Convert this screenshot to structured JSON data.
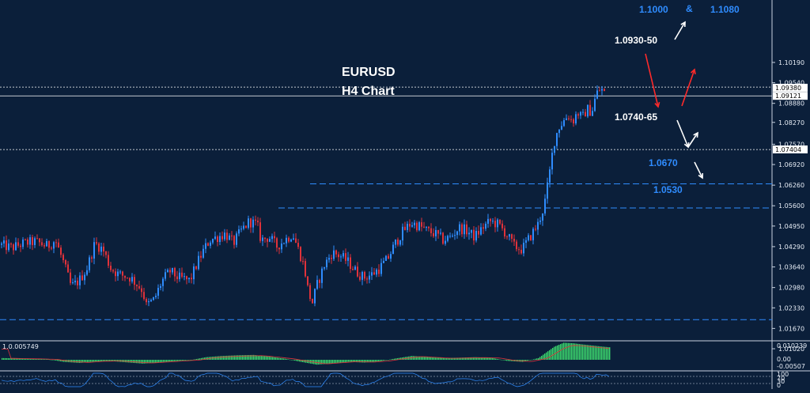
{
  "chart_data": {
    "type": "candlestick",
    "symbol": "EURUSD",
    "timeframe": "H4 Chart",
    "ylim": [
      1.0135,
      1.1219
    ],
    "y_ticks": [
      "1.10190",
      "1.09540",
      "1.08880",
      "1.08270",
      "1.07570",
      "1.06920",
      "1.06260",
      "1.05600",
      "1.04950",
      "1.04290",
      "1.03640",
      "1.02980",
      "1.02330",
      "1.01670",
      "1.01020"
    ],
    "y_tick_values": [
      1.1019,
      1.0954,
      1.0888,
      1.0827,
      1.0757,
      1.0692,
      1.0626,
      1.056,
      1.0495,
      1.0429,
      1.0364,
      1.0298,
      1.0233,
      1.0167,
      1.0102
    ],
    "price_tags": [
      {
        "label": "1.09380",
        "value": 1.0938
      },
      {
        "label": "1.09121",
        "value": 1.09121
      },
      {
        "label": "1.07404",
        "value": 1.07404
      }
    ],
    "price_path": [
      [
        0,
        1.0435
      ],
      [
        15,
        1.0425
      ],
      [
        30,
        1.044
      ],
      [
        45,
        1.0445
      ],
      [
        60,
        1.043
      ],
      [
        70,
        1.045
      ],
      [
        80,
        1.038
      ],
      [
        90,
        1.03
      ],
      [
        100,
        1.032
      ],
      [
        110,
        1.036
      ],
      [
        120,
        1.044
      ],
      [
        130,
        1.042
      ],
      [
        140,
        1.036
      ],
      [
        150,
        1.034
      ],
      [
        165,
        1.033
      ],
      [
        180,
        1.029
      ],
      [
        185,
        1.024
      ],
      [
        195,
        1.026
      ],
      [
        205,
        1.032
      ],
      [
        215,
        1.035
      ],
      [
        225,
        1.033
      ],
      [
        240,
        1.032
      ],
      [
        250,
        1.038
      ],
      [
        258,
        1.042
      ],
      [
        265,
        1.045
      ],
      [
        275,
        1.046
      ],
      [
        285,
        1.047
      ],
      [
        295,
        1.044
      ],
      [
        305,
        1.048
      ],
      [
        315,
        1.051
      ],
      [
        325,
        1.05
      ],
      [
        330,
        1.045
      ],
      [
        340,
        1.046
      ],
      [
        350,
        1.043
      ],
      [
        360,
        1.045
      ],
      [
        370,
        1.047
      ],
      [
        380,
        1.04
      ],
      [
        385,
        1.036
      ],
      [
        390,
        1.028
      ],
      [
        395,
        1.025
      ],
      [
        400,
        1.03
      ],
      [
        410,
        1.037
      ],
      [
        420,
        1.041
      ],
      [
        430,
        1.04
      ],
      [
        440,
        1.038
      ],
      [
        450,
        1.035
      ],
      [
        460,
        1.033
      ],
      [
        470,
        1.034
      ],
      [
        480,
        1.036
      ],
      [
        490,
        1.039
      ],
      [
        500,
        1.044
      ],
      [
        510,
        1.048
      ],
      [
        520,
        1.0505
      ],
      [
        530,
        1.0495
      ],
      [
        540,
        1.048
      ],
      [
        550,
        1.047
      ],
      [
        560,
        1.045
      ],
      [
        570,
        1.046
      ],
      [
        580,
        1.049
      ],
      [
        590,
        1.048
      ],
      [
        600,
        1.046
      ],
      [
        610,
        1.049
      ],
      [
        620,
        1.051
      ],
      [
        630,
        1.05
      ],
      [
        640,
        1.047
      ],
      [
        650,
        1.043
      ],
      [
        660,
        1.042
      ],
      [
        670,
        1.046
      ],
      [
        680,
        1.05
      ],
      [
        688,
        1.056
      ],
      [
        694,
        1.065
      ],
      [
        700,
        1.076
      ],
      [
        706,
        1.081
      ],
      [
        712,
        1.083
      ],
      [
        718,
        1.085
      ],
      [
        724,
        1.083
      ],
      [
        730,
        1.086
      ],
      [
        736,
        1.084
      ],
      [
        742,
        1.087
      ],
      [
        748,
        1.086
      ],
      [
        754,
        1.092
      ],
      [
        760,
        1.0935
      ],
      [
        766,
        1.0912
      ]
    ],
    "levels": [
      {
        "value": 1.094,
        "style": "dotted",
        "x_start": 0
      },
      {
        "value": 1.0912,
        "style": "solid",
        "x_start": 0
      },
      {
        "value": 1.074,
        "style": "dotted",
        "x_start": 0
      },
      {
        "value": 1.063,
        "style": "dashed",
        "x_start": 392
      },
      {
        "value": 1.0553,
        "style": "dashed",
        "x_start": 352
      },
      {
        "value": 1.0195,
        "style": "dashed",
        "x_start": 0
      }
    ],
    "annotations": {
      "res_label": "1.0930-50",
      "res_value": 1.0945,
      "sup_label": "1.0740-65",
      "sup_value": 1.0745,
      "target_1": "1.1000",
      "target_amp": "&",
      "target_2": "1.1080",
      "lvl_1": "1.0670",
      "lvl_2": "1.0530"
    },
    "macd": {
      "value_label": "1.0.005749",
      "scale_top": "0.010239",
      "scale_zero": "0.00",
      "scale_bottom": "-0.00507",
      "histogram": [
        [
          0,
          0.001
        ],
        [
          20,
          0.0008
        ],
        [
          40,
          0.0006
        ],
        [
          60,
          0.0003
        ],
        [
          80,
          -0.0012
        ],
        [
          100,
          -0.0018
        ],
        [
          120,
          -0.001
        ],
        [
          140,
          -0.0008
        ],
        [
          160,
          -0.0015
        ],
        [
          180,
          -0.0022
        ],
        [
          200,
          -0.0015
        ],
        [
          220,
          -0.0008
        ],
        [
          240,
          -0.0002
        ],
        [
          260,
          0.0015
        ],
        [
          280,
          0.0022
        ],
        [
          300,
          0.0026
        ],
        [
          320,
          0.0028
        ],
        [
          340,
          0.0018
        ],
        [
          360,
          0.0006
        ],
        [
          380,
          -0.0012
        ],
        [
          400,
          -0.0028
        ],
        [
          420,
          -0.002
        ],
        [
          440,
          -0.0012
        ],
        [
          460,
          -0.0016
        ],
        [
          480,
          -0.0008
        ],
        [
          500,
          0.0008
        ],
        [
          520,
          0.0022
        ],
        [
          540,
          0.0016
        ],
        [
          560,
          0.001
        ],
        [
          580,
          0.0012
        ],
        [
          600,
          0.0015
        ],
        [
          620,
          0.0012
        ],
        [
          640,
          -0.0006
        ],
        [
          660,
          -0.0012
        ],
        [
          680,
          0.001
        ],
        [
          700,
          0.0075
        ],
        [
          712,
          0.0098
        ],
        [
          724,
          0.0095
        ],
        [
          736,
          0.0088
        ],
        [
          748,
          0.0082
        ],
        [
          760,
          0.0076
        ],
        [
          770,
          0.0072
        ]
      ]
    },
    "rsi": {
      "scale_top": "100",
      "scale_mid1": "70",
      "scale_mid2": "30",
      "scale_bottom": "0"
    },
    "colors": {
      "background": "#0b1f3a",
      "bull": "#2f8cff",
      "bear": "#e0323a",
      "macd_bar": "#3ddc6f",
      "level_white": "#ffffff",
      "level_blue": "#2f8cff",
      "arrow_red": "#ff2a2a",
      "arrow_white": "#ffffff"
    }
  }
}
